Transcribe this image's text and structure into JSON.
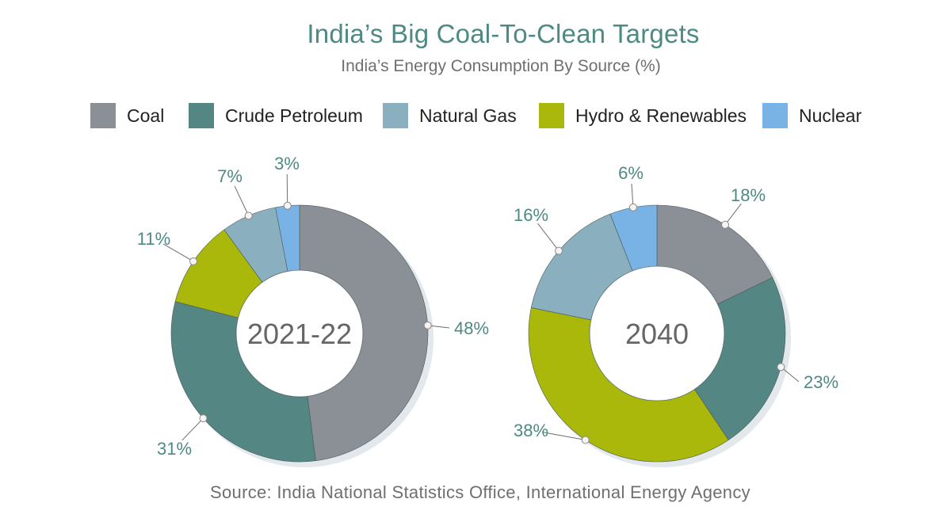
{
  "title": "India’s Big Coal-To-Clean Targets",
  "subtitle": "India’s Energy Consumption By Source (%)",
  "source": "Source: India National Statistics Office, International Energy Agency",
  "legend": [
    {
      "label": "Coal",
      "color": "#8a9096"
    },
    {
      "label": "Crude Petroleum",
      "color": "#548684"
    },
    {
      "label": "Natural Gas",
      "color": "#8aafbe"
    },
    {
      "label": "Hydro & Renewables",
      "color": "#a9b80b"
    },
    {
      "label": "Nuclear",
      "color": "#79b3e5"
    }
  ],
  "chart_data": [
    {
      "type": "pie",
      "center_label": "2021-22",
      "categories": [
        "Coal",
        "Crude Petroleum",
        "Hydro & Renewables",
        "Natural Gas",
        "Nuclear"
      ],
      "values": [
        48,
        31,
        11,
        7,
        3
      ],
      "data_labels": [
        "48%",
        "31%",
        "11%",
        "7%",
        "3%"
      ]
    },
    {
      "type": "pie",
      "center_label": "2040",
      "categories": [
        "Coal",
        "Crude Petroleum",
        "Hydro & Renewables",
        "Natural Gas",
        "Nuclear"
      ],
      "values": [
        18,
        23,
        38,
        16,
        6
      ],
      "data_labels": [
        "18%",
        "23%",
        "38%",
        "16%",
        "6%"
      ]
    }
  ]
}
